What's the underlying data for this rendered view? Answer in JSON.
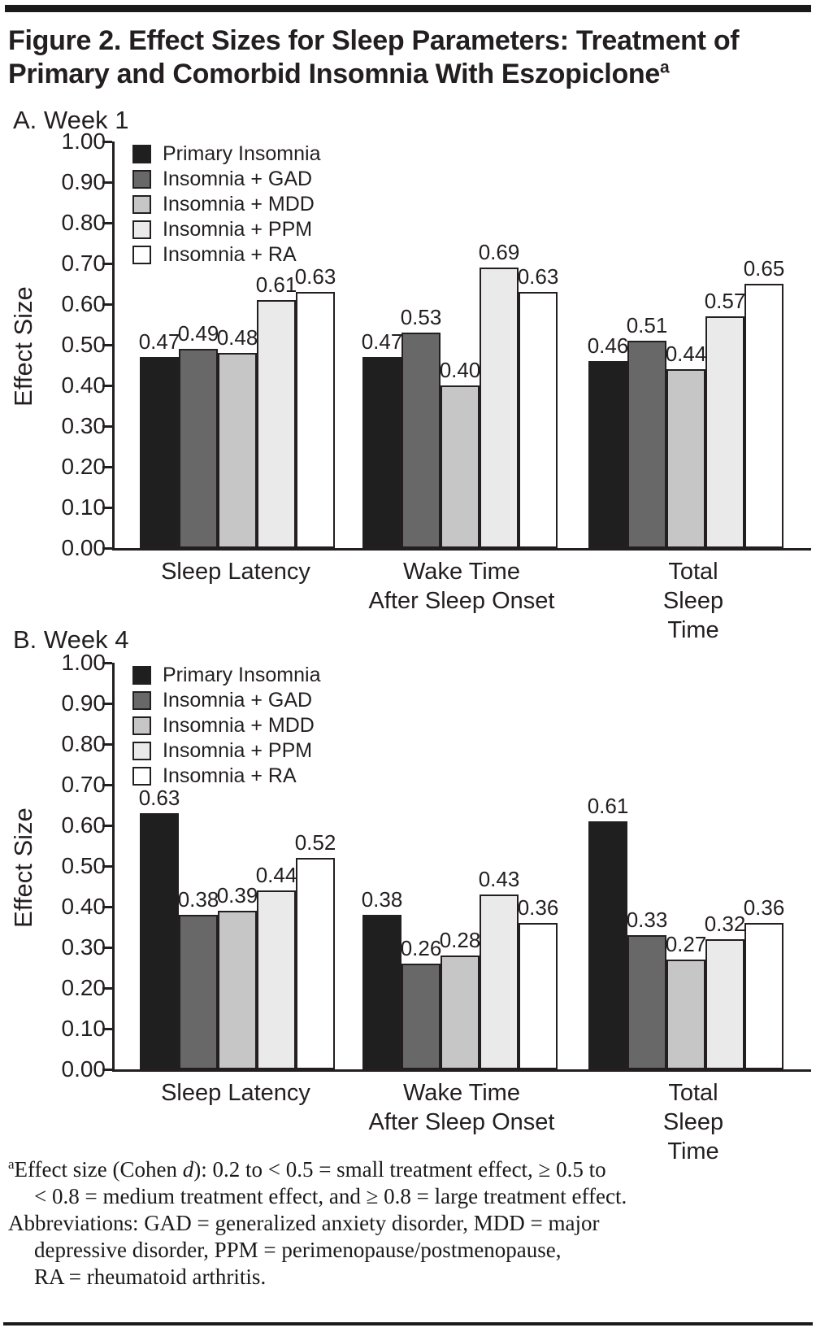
{
  "figure": {
    "title": "Figure 2. Effect Sizes for Sleep Parameters: Treatment of Primary and Comorbid Insomnia With Eszopiclone",
    "title_superscript": "a"
  },
  "colors": {
    "ink": "#231f20",
    "series_black": "#1f1f1f",
    "series_dark_gray": "#686868",
    "series_medium_gray": "#c6c6c6",
    "series_light_gray": "#eaeaea",
    "series_white": "#ffffff"
  },
  "chart_data": [
    {
      "panel": "A. Week 1",
      "type": "bar",
      "ylabel": "Effect Size",
      "xlabel": "",
      "ylim": [
        0.0,
        1.0
      ],
      "ytick_step": 0.1,
      "grid": false,
      "legend_position": "top-left-inside",
      "categories": [
        "Sleep Latency",
        "Wake Time\nAfter Sleep Onset",
        "Total Sleep Time"
      ],
      "series": [
        {
          "name": "Primary Insomnia",
          "color": "#1f1f1f",
          "values": [
            0.47,
            0.47,
            0.46
          ]
        },
        {
          "name": "Insomnia + GAD",
          "color": "#686868",
          "values": [
            0.49,
            0.53,
            0.51
          ]
        },
        {
          "name": "Insomnia + MDD",
          "color": "#c6c6c6",
          "values": [
            0.48,
            0.4,
            0.44
          ]
        },
        {
          "name": "Insomnia + PPM",
          "color": "#eaeaea",
          "values": [
            0.61,
            0.69,
            0.57
          ]
        },
        {
          "name": "Insomnia + RA",
          "color": "#ffffff",
          "values": [
            0.63,
            0.63,
            0.65
          ]
        }
      ]
    },
    {
      "panel": "B. Week 4",
      "type": "bar",
      "ylabel": "Effect Size",
      "xlabel": "",
      "ylim": [
        0.0,
        1.0
      ],
      "ytick_step": 0.1,
      "grid": false,
      "legend_position": "top-left-inside",
      "categories": [
        "Sleep Latency",
        "Wake Time\nAfter Sleep Onset",
        "Total Sleep Time"
      ],
      "series": [
        {
          "name": "Primary Insomnia",
          "color": "#1f1f1f",
          "values": [
            0.63,
            0.38,
            0.61
          ]
        },
        {
          "name": "Insomnia + GAD",
          "color": "#686868",
          "values": [
            0.38,
            0.26,
            0.33
          ]
        },
        {
          "name": "Insomnia + MDD",
          "color": "#c6c6c6",
          "values": [
            0.39,
            0.28,
            0.27
          ]
        },
        {
          "name": "Insomnia + PPM",
          "color": "#eaeaea",
          "values": [
            0.44,
            0.43,
            0.32
          ]
        },
        {
          "name": "Insomnia + RA",
          "color": "#ffffff",
          "values": [
            0.52,
            0.36,
            0.36
          ]
        }
      ]
    }
  ],
  "footnote": {
    "sup_a": "a",
    "line1_pre": "Effect size (Cohen ",
    "line1_italic": "d",
    "line1_post": "): 0.2 to < 0.5 = small treatment effect, ≥ 0.5 to",
    "line2": "< 0.8 = medium treatment effect, and ≥ 0.8 = large treatment effect.",
    "line3": "Abbreviations: GAD = generalized anxiety disorder, MDD = major",
    "line4": "depressive disorder, PPM = perimenopause/postmenopause,",
    "line5": "RA = rheumatoid arthritis."
  }
}
